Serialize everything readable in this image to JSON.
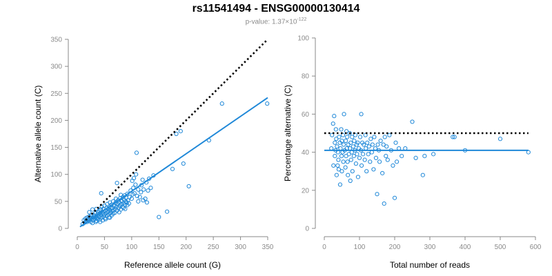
{
  "title": "rs11541494 - ENSG00000130414",
  "subtitle": {
    "prefix": "p-value: 1.37×10",
    "exponent": "-122"
  },
  "colors": {
    "points": "#1f88d8",
    "fit": "#1f88d8",
    "reference": "#000000",
    "axis": "#8a8a8a"
  },
  "chart_data": [
    {
      "type": "scatter",
      "xlabel": "Reference allele count (G)",
      "ylabel": "Alternative allele count (C)",
      "xlim": [
        0,
        350
      ],
      "ylim": [
        0,
        350
      ],
      "xticks": [
        0,
        50,
        100,
        150,
        200,
        250,
        300,
        350
      ],
      "yticks": [
        0,
        50,
        100,
        150,
        200,
        250,
        300,
        350
      ],
      "grid": false,
      "reference_line": {
        "style": "dotted",
        "points": [
          [
            10,
            10
          ],
          [
            350,
            350
          ]
        ]
      },
      "fit_line": {
        "style": "solid",
        "points": [
          [
            5,
            3
          ],
          [
            350,
            242
          ]
        ]
      },
      "points": [
        [
          10,
          8
        ],
        [
          12,
          15
        ],
        [
          14,
          11
        ],
        [
          15,
          18
        ],
        [
          16,
          13
        ],
        [
          18,
          12
        ],
        [
          18,
          20
        ],
        [
          20,
          17
        ],
        [
          21,
          14
        ],
        [
          22,
          22
        ],
        [
          23,
          16
        ],
        [
          24,
          19
        ],
        [
          25,
          12
        ],
        [
          26,
          24
        ],
        [
          27,
          17
        ],
        [
          28,
          35
        ],
        [
          29,
          20
        ],
        [
          30,
          15
        ],
        [
          30,
          25
        ],
        [
          31,
          22
        ],
        [
          32,
          18
        ],
        [
          33,
          28
        ],
        [
          34,
          21
        ],
        [
          35,
          14
        ],
        [
          35,
          36
        ],
        [
          36,
          24
        ],
        [
          37,
          19
        ],
        [
          38,
          30
        ],
        [
          39,
          26
        ],
        [
          40,
          22
        ],
        [
          40,
          33
        ],
        [
          41,
          16
        ],
        [
          42,
          28
        ],
        [
          43,
          35
        ],
        [
          44,
          24
        ],
        [
          45,
          20
        ],
        [
          45,
          40
        ],
        [
          46,
          30
        ],
        [
          47,
          27
        ],
        [
          48,
          22
        ],
        [
          48,
          36
        ],
        [
          49,
          31
        ],
        [
          50,
          25
        ],
        [
          50,
          42
        ],
        [
          51,
          19
        ],
        [
          52,
          33
        ],
        [
          53,
          28
        ],
        [
          54,
          38
        ],
        [
          55,
          24
        ],
        [
          55,
          45
        ],
        [
          56,
          31
        ],
        [
          57,
          36
        ],
        [
          58,
          26
        ],
        [
          59,
          40
        ],
        [
          60,
          33
        ],
        [
          60,
          48
        ],
        [
          61,
          29
        ],
        [
          62,
          37
        ],
        [
          63,
          44
        ],
        [
          64,
          32
        ],
        [
          65,
          38
        ],
        [
          66,
          50
        ],
        [
          67,
          34
        ],
        [
          68,
          42
        ],
        [
          69,
          29
        ],
        [
          70,
          47
        ],
        [
          70,
          36
        ],
        [
          71,
          55
        ],
        [
          72,
          40
        ],
        [
          73,
          33
        ],
        [
          74,
          45
        ],
        [
          75,
          52
        ],
        [
          76,
          38
        ],
        [
          77,
          48
        ],
        [
          78,
          42
        ],
        [
          79,
          56
        ],
        [
          80,
          35
        ],
        [
          80,
          62
        ],
        [
          81,
          45
        ],
        [
          82,
          50
        ],
        [
          83,
          40
        ],
        [
          84,
          58
        ],
        [
          85,
          47
        ],
        [
          86,
          53
        ],
        [
          87,
          61
        ],
        [
          88,
          44
        ],
        [
          89,
          50
        ],
        [
          90,
          57
        ],
        [
          91,
          48
        ],
        [
          92,
          64
        ],
        [
          93,
          52
        ],
        [
          95,
          46
        ],
        [
          96,
          58
        ],
        [
          98,
          70
        ],
        [
          100,
          55
        ],
        [
          101,
          88
        ],
        [
          102,
          63
        ],
        [
          103,
          75
        ],
        [
          104,
          93
        ],
        [
          105,
          65
        ],
        [
          107,
          81
        ],
        [
          108,
          100
        ],
        [
          109,
          140
        ],
        [
          110,
          60
        ],
        [
          112,
          72
        ],
        [
          115,
          58
        ],
        [
          117,
          67
        ],
        [
          118,
          80
        ],
        [
          120,
          90
        ],
        [
          121,
          52
        ],
        [
          125,
          55
        ],
        [
          127,
          85
        ],
        [
          130,
          70
        ],
        [
          132,
          92
        ],
        [
          135,
          75
        ],
        [
          140,
          98
        ],
        [
          150,
          21
        ],
        [
          165,
          31
        ],
        [
          175,
          110
        ],
        [
          182,
          175
        ],
        [
          190,
          180
        ],
        [
          195,
          120
        ],
        [
          205,
          78
        ],
        [
          242,
          163
        ],
        [
          266,
          231
        ],
        [
          349,
          231
        ],
        [
          22,
          30
        ],
        [
          28,
          10
        ],
        [
          34,
          12
        ],
        [
          38,
          17
        ],
        [
          42,
          12
        ],
        [
          47,
          15
        ],
        [
          52,
          17
        ],
        [
          58,
          20
        ],
        [
          63,
          24
        ],
        [
          44,
          65
        ],
        [
          66,
          27
        ],
        [
          77,
          30
        ],
        [
          85,
          38
        ],
        [
          92,
          43
        ],
        [
          112,
          50
        ],
        [
          122,
          72
        ],
        [
          128,
          48
        ],
        [
          60,
          20
        ],
        [
          73,
          84
        ],
        [
          88,
          36
        ]
      ]
    },
    {
      "type": "scatter",
      "xlabel": "Total number of reads",
      "ylabel": "Percentage alternative (C)",
      "xlim": [
        0,
        600
      ],
      "ylim": [
        0,
        100
      ],
      "xticks": [
        0,
        100,
        200,
        300,
        400,
        500,
        600
      ],
      "yticks": [
        0,
        20,
        40,
        60,
        80,
        100
      ],
      "grid": false,
      "reference_line": {
        "style": "dotted",
        "points": [
          [
            0,
            50
          ],
          [
            580,
            50
          ]
        ]
      },
      "fit_line": {
        "style": "solid",
        "points": [
          [
            0,
            41
          ],
          [
            580,
            41
          ]
        ]
      },
      "points": [
        [
          20,
          42
        ],
        [
          22,
          49
        ],
        [
          25,
          55
        ],
        [
          26,
          33
        ],
        [
          28,
          59
        ],
        [
          30,
          45
        ],
        [
          30,
          38
        ],
        [
          32,
          41
        ],
        [
          33,
          52
        ],
        [
          34,
          47
        ],
        [
          35,
          28
        ],
        [
          36,
          43
        ],
        [
          38,
          33
        ],
        [
          39,
          40
        ],
        [
          40,
          36
        ],
        [
          41,
          31
        ],
        [
          42,
          48
        ],
        [
          44,
          45
        ],
        [
          45,
          23
        ],
        [
          46,
          42
        ],
        [
          48,
          52
        ],
        [
          49,
          38
        ],
        [
          50,
          46
        ],
        [
          50,
          30
        ],
        [
          52,
          40
        ],
        [
          53,
          49
        ],
        [
          54,
          35
        ],
        [
          55,
          44
        ],
        [
          56,
          60
        ],
        [
          58,
          41
        ],
        [
          60,
          32
        ],
        [
          61,
          46
        ],
        [
          62,
          38
        ],
        [
          63,
          51
        ],
        [
          64,
          42
        ],
        [
          65,
          48
        ],
        [
          66,
          35
        ],
        [
          67,
          28
        ],
        [
          68,
          44
        ],
        [
          70,
          39
        ],
        [
          72,
          50
        ],
        [
          73,
          42
        ],
        [
          74,
          25
        ],
        [
          75,
          45
        ],
        [
          76,
          36
        ],
        [
          78,
          40
        ],
        [
          79,
          48
        ],
        [
          80,
          30
        ],
        [
          82,
          43
        ],
        [
          84,
          38
        ],
        [
          85,
          46
        ],
        [
          87,
          41
        ],
        [
          88,
          49
        ],
        [
          90,
          34
        ],
        [
          92,
          44
        ],
        [
          93,
          39
        ],
        [
          95,
          45
        ],
        [
          96,
          27
        ],
        [
          98,
          42
        ],
        [
          100,
          37
        ],
        [
          102,
          48
        ],
        [
          104,
          41
        ],
        [
          105,
          60
        ],
        [
          106,
          33
        ],
        [
          108,
          45
        ],
        [
          110,
          39
        ],
        [
          112,
          44
        ],
        [
          115,
          36
        ],
        [
          117,
          49
        ],
        [
          118,
          42
        ],
        [
          120,
          30
        ],
        [
          122,
          45
        ],
        [
          125,
          39
        ],
        [
          127,
          43
        ],
        [
          130,
          35
        ],
        [
          132,
          47
        ],
        [
          135,
          40
        ],
        [
          137,
          44
        ],
        [
          140,
          31
        ],
        [
          142,
          48
        ],
        [
          145,
          42
        ],
        [
          147,
          37
        ],
        [
          150,
          18
        ],
        [
          152,
          44
        ],
        [
          155,
          41
        ],
        [
          157,
          35
        ],
        [
          160,
          46
        ],
        [
          165,
          29
        ],
        [
          168,
          44
        ],
        [
          170,
          13
        ],
        [
          172,
          48
        ],
        [
          175,
          38
        ],
        [
          177,
          43
        ],
        [
          180,
          36
        ],
        [
          185,
          49
        ],
        [
          190,
          41
        ],
        [
          195,
          33
        ],
        [
          200,
          16
        ],
        [
          203,
          45
        ],
        [
          206,
          35
        ],
        [
          212,
          42
        ],
        [
          220,
          38
        ],
        [
          230,
          42
        ],
        [
          250,
          56
        ],
        [
          260,
          37
        ],
        [
          280,
          28
        ],
        [
          285,
          38
        ],
        [
          310,
          39
        ],
        [
          365,
          48
        ],
        [
          370,
          48
        ],
        [
          400,
          41
        ],
        [
          500,
          47
        ],
        [
          580,
          40
        ]
      ]
    }
  ]
}
